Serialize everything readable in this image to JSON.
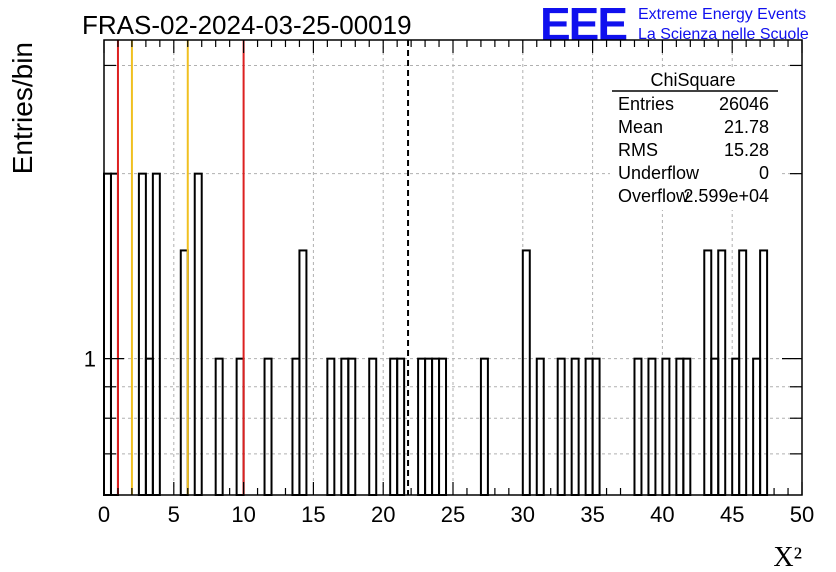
{
  "header": {
    "title": "FRAS-02-2024-03-25-00019",
    "logo_letters": "EEE",
    "logo_line1": "Extreme Energy Events",
    "logo_line2": "La Scienza nelle Scuole"
  },
  "stats": {
    "title": "ChiSquare",
    "rows": [
      {
        "label": "Entries",
        "value": "26046"
      },
      {
        "label": "Mean",
        "value": "21.78"
      },
      {
        "label": "RMS",
        "value": "15.28"
      },
      {
        "label": "Underflow",
        "value": "0"
      },
      {
        "label": "Overflow",
        "value": "2.599e+04"
      }
    ]
  },
  "chart_data": {
    "type": "histogram",
    "ylabel": "Entries/bin",
    "xlabel": "X²",
    "xlim": [
      0,
      50
    ],
    "ylim": [
      0.6,
      3.3
    ],
    "yscale": "log",
    "grid": true,
    "x_ticks": [
      "0",
      "5",
      "10",
      "15",
      "20",
      "25",
      "30",
      "35",
      "40",
      "45",
      "50"
    ],
    "y_ticks": [
      "1"
    ],
    "bin_width": 0.5,
    "bins": [
      {
        "x": 0.0,
        "y": 2
      },
      {
        "x": 0.5,
        "y": 2
      },
      {
        "x": 2.5,
        "y": 2
      },
      {
        "x": 3.0,
        "y": 1
      },
      {
        "x": 3.5,
        "y": 2
      },
      {
        "x": 5.5,
        "y": 1.5
      },
      {
        "x": 6.5,
        "y": 2
      },
      {
        "x": 8.0,
        "y": 1
      },
      {
        "x": 9.5,
        "y": 1
      },
      {
        "x": 11.5,
        "y": 1
      },
      {
        "x": 13.5,
        "y": 1
      },
      {
        "x": 14.0,
        "y": 1.5
      },
      {
        "x": 16.0,
        "y": 1
      },
      {
        "x": 17.0,
        "y": 1
      },
      {
        "x": 17.5,
        "y": 1
      },
      {
        "x": 19.0,
        "y": 1
      },
      {
        "x": 20.5,
        "y": 1
      },
      {
        "x": 21.0,
        "y": 1
      },
      {
        "x": 22.5,
        "y": 1
      },
      {
        "x": 23.0,
        "y": 1
      },
      {
        "x": 23.5,
        "y": 1
      },
      {
        "x": 24.0,
        "y": 1
      },
      {
        "x": 27.0,
        "y": 1
      },
      {
        "x": 30.0,
        "y": 1.5
      },
      {
        "x": 31.0,
        "y": 1
      },
      {
        "x": 32.5,
        "y": 1
      },
      {
        "x": 33.5,
        "y": 1
      },
      {
        "x": 34.5,
        "y": 1
      },
      {
        "x": 35.0,
        "y": 1
      },
      {
        "x": 38.0,
        "y": 1
      },
      {
        "x": 39.0,
        "y": 1
      },
      {
        "x": 40.0,
        "y": 1
      },
      {
        "x": 41.0,
        "y": 1
      },
      {
        "x": 41.5,
        "y": 1
      },
      {
        "x": 43.0,
        "y": 1.5
      },
      {
        "x": 43.5,
        "y": 1
      },
      {
        "x": 44.0,
        "y": 1.5
      },
      {
        "x": 45.0,
        "y": 1
      },
      {
        "x": 45.5,
        "y": 1.5
      },
      {
        "x": 46.5,
        "y": 1
      },
      {
        "x": 47.0,
        "y": 1.5
      }
    ],
    "mean_line": 21.78,
    "vertical_lines": [
      {
        "x": 1.0,
        "color": "#dd2020"
      },
      {
        "x": 2.0,
        "color": "#f0c020"
      },
      {
        "x": 6.0,
        "color": "#f0c020"
      },
      {
        "x": 10.0,
        "color": "#dd2020"
      }
    ],
    "colors": {
      "hist": "#000000",
      "logo": "#1010ee"
    }
  }
}
